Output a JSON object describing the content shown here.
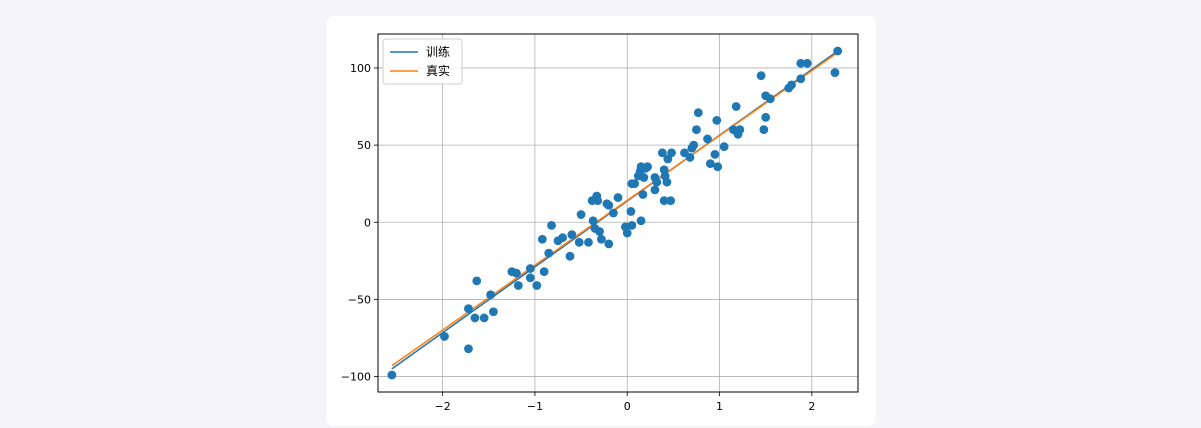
{
  "chart_data": {
    "type": "scatter",
    "xlim": [
      -2.7,
      2.5
    ],
    "ylim": [
      -110,
      122
    ],
    "xticks": [
      -2,
      -1,
      0,
      1,
      2
    ],
    "yticks": [
      -100,
      -50,
      0,
      50,
      100
    ],
    "xtick_labels": [
      "−2",
      "−1",
      "0",
      "1",
      "2"
    ],
    "ytick_labels": [
      "−100",
      "−50",
      "0",
      "50",
      "100"
    ],
    "grid": true,
    "legend": {
      "placement": "upper-left",
      "entries": [
        {
          "label": "训练",
          "color": "#1f77b4"
        },
        {
          "label": "真实",
          "color": "#ff7f0e"
        }
      ]
    },
    "lines": [
      {
        "label": "训练",
        "color": "#1f77b4",
        "x": [
          -2.55,
          2.28
        ],
        "y": [
          -95,
          111
        ]
      },
      {
        "label": "真实",
        "color": "#ff7f0e",
        "x": [
          -2.55,
          2.28
        ],
        "y": [
          -93,
          110
        ]
      }
    ],
    "scatter": {
      "color": "#1f77b4",
      "x": [
        -2.55,
        -1.98,
        -1.72,
        -1.72,
        -1.65,
        -1.63,
        -1.55,
        -1.48,
        -1.45,
        -1.25,
        -1.2,
        -1.18,
        -1.05,
        -1.05,
        -0.98,
        -0.92,
        -0.9,
        -0.85,
        -0.82,
        -0.75,
        -0.7,
        -0.62,
        -0.6,
        -0.52,
        -0.5,
        -0.42,
        -0.38,
        -0.37,
        -0.35,
        -0.33,
        -0.32,
        -0.3,
        -0.28,
        -0.22,
        -0.2,
        -0.2,
        -0.15,
        -0.1,
        -0.02,
        0.0,
        0.04,
        0.05,
        0.05,
        0.08,
        0.12,
        0.14,
        0.15,
        0.15,
        0.17,
        0.18,
        0.2,
        0.22,
        0.3,
        0.3,
        0.32,
        0.38,
        0.4,
        0.4,
        0.41,
        0.43,
        0.44,
        0.47,
        0.48,
        0.62,
        0.68,
        0.7,
        0.72,
        0.75,
        0.77,
        0.87,
        0.9,
        0.95,
        0.97,
        0.98,
        1.05,
        1.15,
        1.18,
        1.2,
        1.22,
        1.45,
        1.48,
        1.5,
        1.5,
        1.55,
        1.75,
        1.78,
        1.88,
        1.88,
        1.95,
        2.25,
        2.28
      ],
      "y": [
        -99,
        -74,
        -82,
        -56,
        -62,
        -38,
        -62,
        -47,
        -58,
        -32,
        -33,
        -41,
        -30,
        -36,
        -41,
        -11,
        -32,
        -20,
        -2,
        -12,
        -10,
        -22,
        -8,
        -13,
        5,
        -13,
        14,
        1,
        -4,
        17,
        14,
        -6,
        -11,
        12,
        -14,
        11,
        6,
        16,
        -3,
        -7,
        7,
        25,
        -2,
        25,
        30,
        33,
        1,
        36,
        18,
        29,
        35,
        36,
        21,
        29,
        26,
        45,
        14,
        34,
        30,
        26,
        41,
        14,
        45,
        45,
        42,
        48,
        50,
        60,
        71,
        54,
        38,
        44,
        66,
        36,
        49,
        60,
        75,
        57,
        60,
        95,
        60,
        68,
        82,
        80,
        87,
        89,
        93,
        103,
        103,
        97,
        111
      ]
    }
  }
}
